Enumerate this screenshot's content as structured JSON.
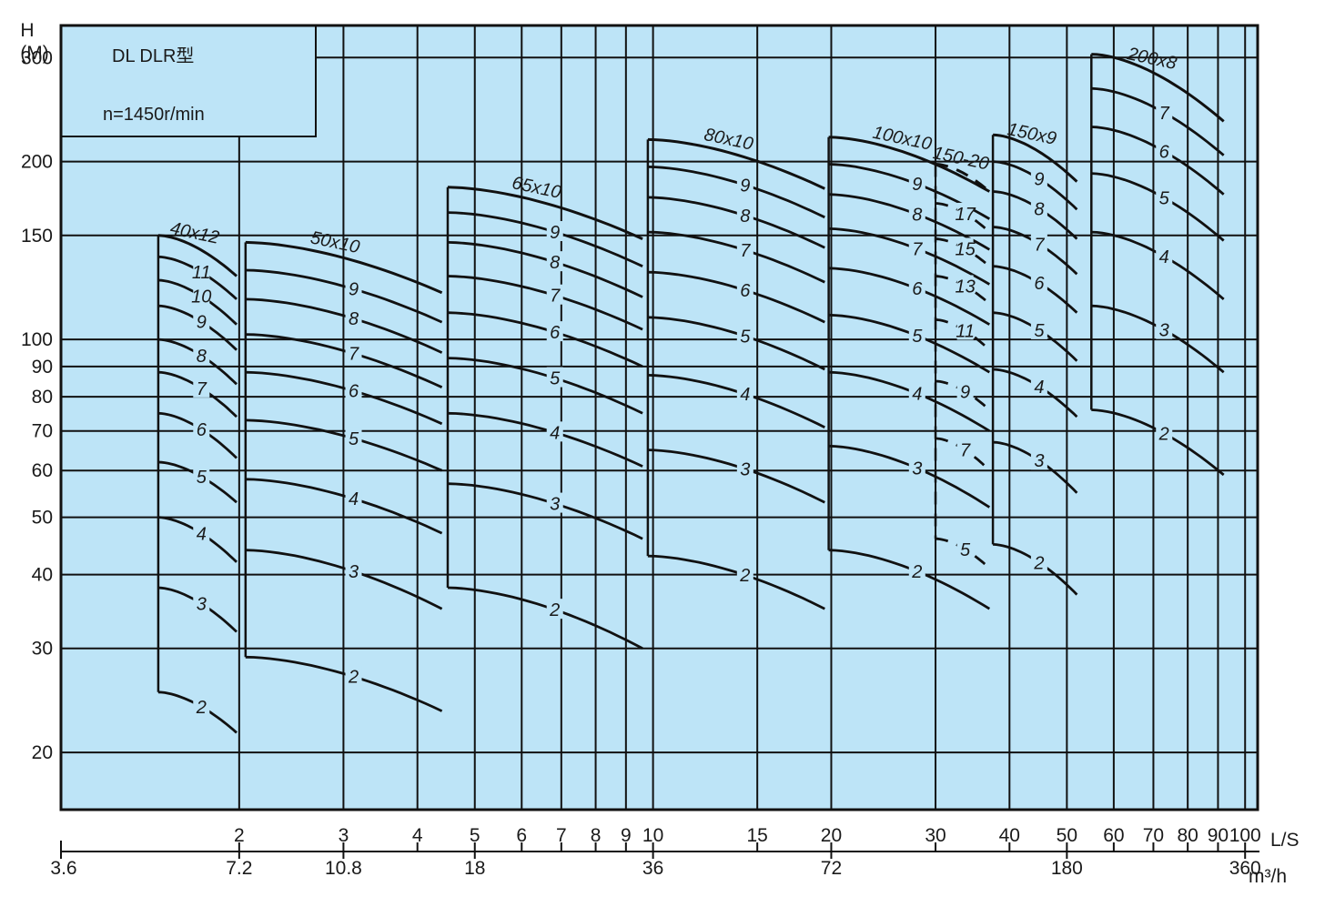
{
  "chart_data": {
    "type": "line",
    "title": "DL DLR型",
    "subtitle": "n=1450r/min",
    "ylabel": "H",
    "yunit": "(M)",
    "xlabel": "L/S",
    "x2label": "m³/h",
    "yscale": "log",
    "xscale": "log",
    "ylim": [
      16,
      340
    ],
    "xlim": [
      1.0,
      105
    ],
    "yticks": [
      20,
      30,
      40,
      50,
      60,
      70,
      80,
      90,
      100,
      150,
      200,
      300
    ],
    "xticks": [
      2,
      3,
      4,
      5,
      6,
      7,
      8,
      9,
      10,
      15,
      20,
      30,
      40,
      50,
      60,
      70,
      80,
      90,
      100
    ],
    "x2ticks": [
      {
        "label": "3.6",
        "at": 1.0
      },
      {
        "label": "7.2",
        "at": 2.0
      },
      {
        "label": "10.8",
        "at": 3.0
      },
      {
        "label": "18",
        "at": 5.0
      },
      {
        "label": "36",
        "at": 10.0
      },
      {
        "label": "72",
        "at": 20.0
      },
      {
        "label": "180",
        "at": 50.0
      },
      {
        "label": "360",
        "at": 100.0
      }
    ],
    "series": [
      {
        "name": "40x12",
        "x": [
          1.46,
          1.98
        ],
        "curves": [
          {
            "stage": "12",
            "y": [
              150,
              128
            ]
          },
          {
            "stage": "11",
            "y": [
              138,
              117
            ]
          },
          {
            "stage": "10",
            "y": [
              126,
              106
            ]
          },
          {
            "stage": "9",
            "y": [
              114,
              96
            ]
          },
          {
            "stage": "8",
            "y": [
              100,
              84
            ]
          },
          {
            "stage": "7",
            "y": [
              88,
              74
            ]
          },
          {
            "stage": "6",
            "y": [
              75,
              63
            ]
          },
          {
            "stage": "5",
            "y": [
              62,
              53
            ]
          },
          {
            "stage": "4",
            "y": [
              50,
              42
            ]
          },
          {
            "stage": "3",
            "y": [
              38,
              32
            ]
          },
          {
            "stage": "2",
            "y": [
              25.3,
              21.6
            ]
          }
        ]
      },
      {
        "name": "50x10",
        "x": [
          2.05,
          4.4
        ],
        "curves": [
          {
            "stage": "10",
            "y": [
              146,
              120
            ]
          },
          {
            "stage": "9",
            "y": [
              131,
              107
            ]
          },
          {
            "stage": "8",
            "y": [
              117,
              95
            ]
          },
          {
            "stage": "7",
            "y": [
              102,
              83
            ]
          },
          {
            "stage": "6",
            "y": [
              88,
              72
            ]
          },
          {
            "stage": "5",
            "y": [
              73,
              60
            ]
          },
          {
            "stage": "4",
            "y": [
              58,
              47
            ]
          },
          {
            "stage": "3",
            "y": [
              44,
              35
            ]
          },
          {
            "stage": "2",
            "y": [
              29,
              23.5
            ]
          }
        ]
      },
      {
        "name": "65x10",
        "x": [
          4.5,
          9.6
        ],
        "curves": [
          {
            "stage": "10",
            "y": [
              181,
              148
            ]
          },
          {
            "stage": "9",
            "y": [
              164,
              133
            ]
          },
          {
            "stage": "8",
            "y": [
              146,
              118
            ]
          },
          {
            "stage": "7",
            "y": [
              128,
              104
            ]
          },
          {
            "stage": "6",
            "y": [
              111,
              90
            ]
          },
          {
            "stage": "5",
            "y": [
              93,
              75
            ]
          },
          {
            "stage": "4",
            "y": [
              75,
              61
            ]
          },
          {
            "stage": "3",
            "y": [
              57,
              46
            ]
          },
          {
            "stage": "2",
            "y": [
              38,
              30
            ]
          }
        ]
      },
      {
        "name": "80x10",
        "x": [
          9.8,
          19.5
        ],
        "curves": [
          {
            "stage": "10",
            "y": [
              218,
              180
            ]
          },
          {
            "stage": "9",
            "y": [
              196,
              161
            ]
          },
          {
            "stage": "8",
            "y": [
              174,
              143
            ]
          },
          {
            "stage": "7",
            "y": [
              152,
              125
            ]
          },
          {
            "stage": "6",
            "y": [
              130,
              107
            ]
          },
          {
            "stage": "5",
            "y": [
              109,
              89
            ]
          },
          {
            "stage": "4",
            "y": [
              87,
              71
            ]
          },
          {
            "stage": "3",
            "y": [
              65,
              53
            ]
          },
          {
            "stage": "2",
            "y": [
              43,
              35
            ]
          }
        ]
      },
      {
        "name": "100x10",
        "x": [
          19.8,
          37
        ],
        "curves": [
          {
            "stage": "10",
            "y": [
              220,
              178
            ]
          },
          {
            "stage": "9",
            "y": [
              198,
              160
            ]
          },
          {
            "stage": "8",
            "y": [
              176,
              142
            ]
          },
          {
            "stage": "7",
            "y": [
              154,
              124
            ]
          },
          {
            "stage": "6",
            "y": [
              132,
              106
            ]
          },
          {
            "stage": "5",
            "y": [
              110,
              88
            ]
          },
          {
            "stage": "4",
            "y": [
              88,
              70
            ]
          },
          {
            "stage": "3",
            "y": [
              66,
              52
            ]
          },
          {
            "stage": "2",
            "y": [
              44,
              35
            ]
          }
        ]
      },
      {
        "name": "150-20",
        "dashed": true,
        "x": [
          30,
          37
        ],
        "curves": [
          {
            "stage": "20",
            "y": [
              198,
              178
            ]
          },
          {
            "stage": "17",
            "y": [
              170,
              152
            ]
          },
          {
            "stage": "15",
            "y": [
              148,
              133
            ]
          },
          {
            "stage": "13",
            "y": [
              128,
              115
            ]
          },
          {
            "stage": "11",
            "y": [
              108,
              96
            ]
          },
          {
            "stage": "9",
            "y": [
              85,
              76
            ]
          },
          {
            "stage": "7",
            "y": [
              68,
              60
            ]
          },
          {
            "stage": "5",
            "y": [
              46,
              41
            ]
          }
        ]
      },
      {
        "name": "150x9",
        "x": [
          37.5,
          52
        ],
        "curves": [
          {
            "stage": "10",
            "y": [
              222,
              185
            ]
          },
          {
            "stage": "9",
            "y": [
              200,
              166
            ]
          },
          {
            "stage": "8",
            "y": [
              178,
              148
            ]
          },
          {
            "stage": "7",
            "y": [
              155,
              129
            ]
          },
          {
            "stage": "6",
            "y": [
              133,
              111
            ]
          },
          {
            "stage": "5",
            "y": [
              111,
              92
            ]
          },
          {
            "stage": "4",
            "y": [
              89,
              74
            ]
          },
          {
            "stage": "3",
            "y": [
              67,
              55
            ]
          },
          {
            "stage": "2",
            "y": [
              45,
              37
            ]
          }
        ]
      },
      {
        "name": "200x8",
        "x": [
          55,
          92
        ],
        "curves": [
          {
            "stage": "8",
            "y": [
              304,
              234
            ]
          },
          {
            "stage": "7",
            "y": [
              266,
              205
            ]
          },
          {
            "stage": "6",
            "y": [
              229,
              176
            ]
          },
          {
            "stage": "5",
            "y": [
              191,
              147
            ]
          },
          {
            "stage": "4",
            "y": [
              152,
              117
            ]
          },
          {
            "stage": "3",
            "y": [
              114,
              88
            ]
          },
          {
            "stage": "2",
            "y": [
              76,
              59
            ]
          }
        ]
      }
    ]
  }
}
